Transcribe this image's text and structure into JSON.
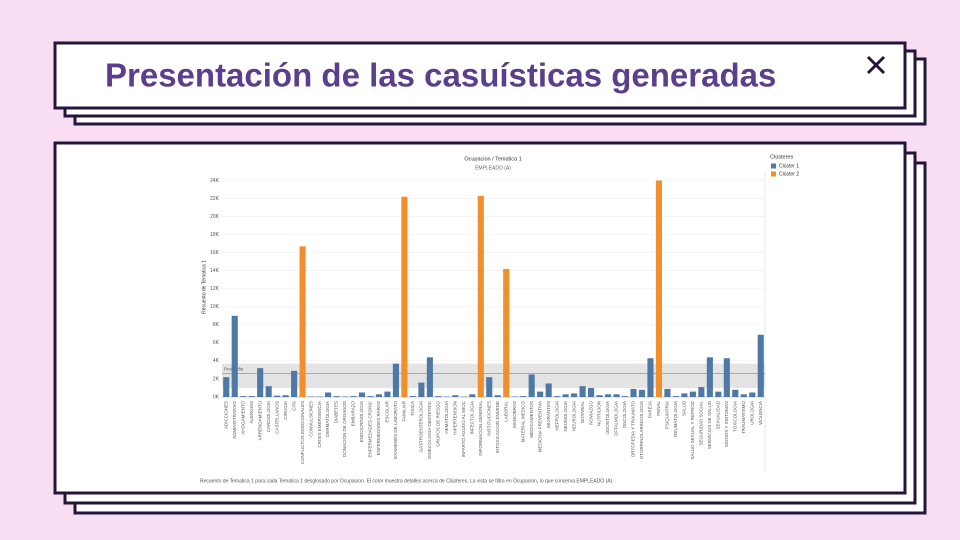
{
  "slide": {
    "title": "Presentación de las casuísticas generadas"
  },
  "chart_data": {
    "type": "bar",
    "title": "Ocupacion / Tematica 1",
    "subtitle": "EMPLEADO (A)",
    "y_label": "Recuento de Tematica 1",
    "legend_title": "Clústeres",
    "caption": "Recuento de Tematica 1 para cada Tematica 1 desglosado por Ocupacion. El color muestra detalles acerca de Clústeres. La vista se filtra en Ocupacion, lo que conserva EMPLEADO (A).",
    "categories": [
      "ADICCIONES",
      "ADMINISTRATIVO",
      "AHOGAMIENTO",
      "ALERGIAS",
      "ARRENDAMIENTO",
      "CARDIOLOGIA",
      "CASTELLANOS",
      "CIRUGIA",
      "CITA",
      "CONFLICTOS EMOCIONALES",
      "CONVULSIONES",
      "CRISIS EMERGENCIA",
      "DERMATOLOGIA",
      "DIABETES",
      "DONACION DE ORGANOS",
      "EMBARAZO",
      "ENDOCRINOLOGIA",
      "ENFERMEDADES CRONIC",
      "ENFERMEDADES RARAS",
      "ESCOLAR",
      "EXAMENES DE LABORATO",
      "FAMILIAR",
      "FISICA",
      "GASTROENTEROLOGIA",
      "GINECOLOGIA OBSTETRIC",
      "GRUPOS DE RIESGO",
      "HEMATOLOGIA",
      "HIPERTENSION",
      "INFARTO AGUDO AL MIOC",
      "INFECTOLOGIA",
      "INFORMACION GENERAL",
      "INSTITUCIONES",
      "INTOXICACION ENVENE",
      "LABORAL",
      "MANIOBRAS",
      "MATERIAL MEDICO",
      "MEDICAMENTOS",
      "MEDICINA PREVENTIVA",
      "MIGRANTES",
      "NEFROLOGIA",
      "NEUMOLOGIA",
      "NEUROLOGIA",
      "NOTARIAL",
      "NOVIAZGO",
      "NUTRICION",
      "ODONTOLOGIA",
      "OFTALMOLOGIA",
      "ONCOLOGIA",
      "ORTOPEDIA Y TRAUMATO",
      "OTORRINOLARINGOLOGIA",
      "PAREJA",
      "PENAL",
      "PSIQUIATRIA",
      "REUMATOLOGIA",
      "SALUD",
      "SALUD SEXUAL Y REPROD",
      "SEGURIDAD SOCIAL",
      "SERVICIOS DE SALUD",
      "SEXUALIDAD",
      "SIGNOS Y SINTOMAS",
      "TOXICOLOGIA",
      "TRAUMATISMO",
      "UROLOGIA",
      "VIOLENCIA"
    ],
    "series": [
      {
        "name": "Clúster 1",
        "color": "#4e79a7",
        "values": [
          2200,
          9000,
          100,
          100,
          3200,
          1200,
          150,
          200,
          2900,
          null,
          50,
          50,
          500,
          100,
          50,
          100,
          500,
          100,
          300,
          600,
          3700,
          null,
          100,
          1600,
          4400,
          100,
          50,
          200,
          50,
          300,
          null,
          2200,
          200,
          null,
          50,
          100,
          2500,
          600,
          1500,
          100,
          300,
          400,
          1200,
          1000,
          200,
          300,
          300,
          100,
          900,
          800,
          4300,
          null,
          900,
          100,
          400,
          600,
          1100,
          4400,
          600,
          4300,
          800,
          300,
          500,
          6900
        ]
      },
      {
        "name": "Clúster 2",
        "color": "#f28e2b",
        "values": [
          null,
          null,
          null,
          null,
          null,
          null,
          null,
          null,
          null,
          16700,
          null,
          null,
          null,
          null,
          null,
          null,
          null,
          null,
          null,
          null,
          null,
          22200,
          null,
          null,
          null,
          null,
          null,
          null,
          null,
          null,
          22300,
          null,
          null,
          14200,
          null,
          null,
          null,
          null,
          null,
          null,
          null,
          null,
          null,
          null,
          null,
          null,
          null,
          null,
          null,
          null,
          null,
          24000,
          null,
          null,
          null,
          null,
          null,
          null,
          null,
          null,
          null,
          null,
          null,
          null
        ]
      }
    ],
    "reference_band": [
      1000,
      3700
    ],
    "reference_line": {
      "label": "Promedio",
      "value": 2600
    },
    "ylim": [
      0,
      24500
    ],
    "yticks": [
      {
        "value": 0,
        "label": "0K"
      },
      {
        "value": 2000,
        "label": "2K"
      },
      {
        "value": 4000,
        "label": "4K"
      },
      {
        "value": 6000,
        "label": "6K"
      },
      {
        "value": 8000,
        "label": "8K"
      },
      {
        "value": 10000,
        "label": "10K"
      },
      {
        "value": 12000,
        "label": "12K"
      },
      {
        "value": 14000,
        "label": "14K"
      },
      {
        "value": 16000,
        "label": "16K"
      },
      {
        "value": 18000,
        "label": "18K"
      },
      {
        "value": 20000,
        "label": "20K"
      },
      {
        "value": 22000,
        "label": "22K"
      },
      {
        "value": 24000,
        "label": "24K"
      }
    ],
    "grid": true
  }
}
